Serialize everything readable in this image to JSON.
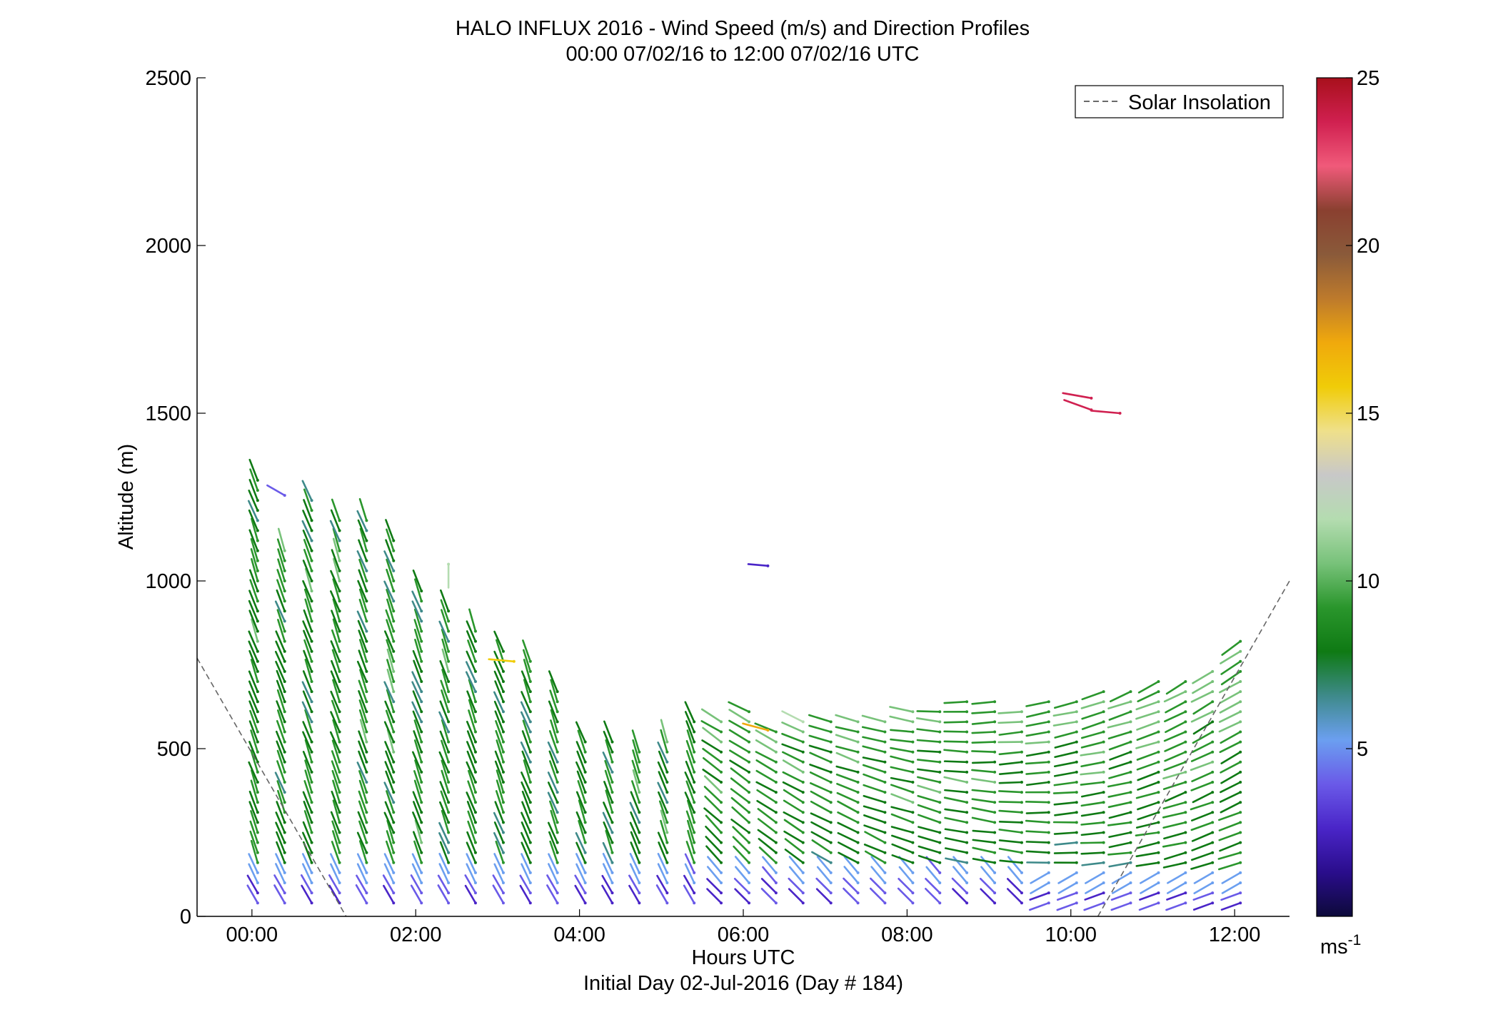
{
  "chart_data": {
    "type": "barb-profile",
    "title": "HALO INFLUX 2016 - Wind Speed (m/s) and Direction Profiles",
    "subtitle": "00:00 07/02/16 to 12:00 07/02/16  UTC",
    "xlabel": "Hours UTC",
    "xlabel2": "Initial Day 02-Jul-2016 (Day # 184)",
    "ylabel": "Altitude (m)",
    "x_range_hours": [
      -0.67,
      12.67
    ],
    "ylim": [
      0,
      2500
    ],
    "x_tick_values": [
      0,
      2,
      4,
      6,
      8,
      10,
      12
    ],
    "x_tick_labels": [
      "00:00",
      "02:00",
      "04:00",
      "06:00",
      "08:00",
      "10:00",
      "12:00"
    ],
    "y_tick_values": [
      0,
      500,
      1000,
      1500,
      2000,
      2500
    ],
    "y_tick_labels": [
      "0",
      "500",
      "1000",
      "1500",
      "2000",
      "2500"
    ],
    "legend": {
      "label": "Solar Insolation",
      "location": "top-right"
    },
    "solar_insolation": {
      "morning_segment": {
        "x": [
          -0.67,
          1.15
        ],
        "y": [
          770,
          0
        ]
      },
      "evening_segment": {
        "x": [
          10.33,
          12.67
        ],
        "y": [
          0,
          1000
        ]
      }
    },
    "colorbar": {
      "range": [
        0,
        25
      ],
      "tick_values": [
        5,
        10,
        15,
        20,
        25
      ],
      "tick_labels": [
        "5",
        "10",
        "15",
        "20",
        "25"
      ],
      "unit_base": "ms",
      "unit_exp": "-1",
      "colors": [
        "#0d0a3a",
        "#2a0d8c",
        "#4a25c8",
        "#6a5ae8",
        "#6b9ff0",
        "#3e8a8a",
        "#0f7a14",
        "#2a962c",
        "#78c27a",
        "#b4dcb0",
        "#c8c8c8",
        "#efe08a",
        "#f0cc08",
        "#f0a90c",
        "#bd7a2c",
        "#8a5a3a",
        "#8a4030",
        "#f05a7a",
        "#d02050",
        "#a8101c"
      ]
    },
    "profile_times_hours": [
      0.07,
      0.4,
      0.73,
      1.07,
      1.4,
      1.73,
      2.07,
      2.4,
      2.73,
      3.07,
      3.4,
      3.73,
      4.07,
      4.4,
      4.73,
      5.07,
      5.4,
      5.73,
      6.07,
      6.4,
      6.73,
      7.07,
      7.4,
      7.73,
      8.07,
      8.4,
      8.73,
      9.07,
      9.4,
      9.73,
      10.07,
      10.4,
      10.73,
      11.07,
      11.4,
      11.73,
      12.07
    ],
    "profile_top_altitudes_m": [
      1320,
      1090,
      1240,
      1200,
      1190,
      1120,
      980,
      930,
      870,
      810,
      760,
      690,
      520,
      530,
      490,
      520,
      590,
      590,
      610,
      560,
      590,
      580,
      580,
      590,
      620,
      630,
      640,
      650,
      620,
      640,
      660,
      670,
      680,
      700,
      720,
      750,
      820
    ],
    "barb_altitude_step_m": 30,
    "isolated_barbs": [
      {
        "x_hours": 0.4,
        "altitude_m": 1255,
        "speed_ms": 3.5,
        "direction_deg": 300
      },
      {
        "x_hours": 2.4,
        "altitude_m": 1050,
        "speed_ms": 11.5,
        "direction_deg": 180
      },
      {
        "x_hours": 3.2,
        "altitude_m": 760,
        "speed_ms": 15.5,
        "direction_deg": 275
      },
      {
        "x_hours": 6.3,
        "altitude_m": 1045,
        "speed_ms": 2.5,
        "direction_deg": 275
      },
      {
        "x_hours": 6.3,
        "altitude_m": 555,
        "speed_ms": 17,
        "direction_deg": 285
      },
      {
        "x_hours": 10.25,
        "altitude_m": 1545,
        "speed_ms": 24,
        "direction_deg": 280
      },
      {
        "x_hours": 10.25,
        "altitude_m": 1510,
        "speed_ms": 24,
        "direction_deg": 290
      },
      {
        "x_hours": 10.6,
        "altitude_m": 1500,
        "speed_ms": 24,
        "direction_deg": 275
      }
    ]
  }
}
